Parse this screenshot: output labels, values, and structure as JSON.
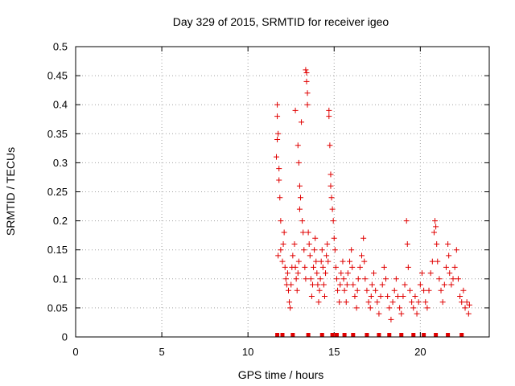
{
  "chart_data": {
    "type": "scatter",
    "title": "Day 329 of 2015, SRMTID for receiver igeo",
    "xlabel": "GPS time / hours",
    "ylabel": "SRMTID / TECUs",
    "xlim": [
      0,
      24
    ],
    "ylim": [
      0,
      0.5
    ],
    "xticks": [
      0,
      5,
      10,
      15,
      20
    ],
    "xtick_labels": [
      "0",
      "5",
      "10",
      "15",
      "20"
    ],
    "yticks": [
      0,
      0.05,
      0.1,
      0.15,
      0.2,
      0.25,
      0.3,
      0.35,
      0.4,
      0.45,
      0.5
    ],
    "ytick_labels": [
      "0",
      "0.05",
      "0.1",
      "0.15",
      "0.2",
      "0.25",
      "0.3",
      "0.35",
      "0.4",
      "0.45",
      "0.5"
    ],
    "grid": true,
    "point_color": "#e00000",
    "marker": "plus",
    "series": [
      {
        "name": "SRMTID",
        "points": [
          [
            11.7,
            0.4
          ],
          [
            11.7,
            0.38
          ],
          [
            11.75,
            0.35
          ],
          [
            11.7,
            0.34
          ],
          [
            11.8,
            0.29
          ],
          [
            11.8,
            0.27
          ],
          [
            11.65,
            0.31
          ],
          [
            11.85,
            0.24
          ],
          [
            11.9,
            0.2
          ],
          [
            11.75,
            0.14
          ],
          [
            11.9,
            0.15
          ],
          [
            12.0,
            0.13
          ],
          [
            12.05,
            0.16
          ],
          [
            12.1,
            0.18
          ],
          [
            12.15,
            0.12
          ],
          [
            12.2,
            0.1
          ],
          [
            12.25,
            0.09
          ],
          [
            12.3,
            0.11
          ],
          [
            12.35,
            0.08
          ],
          [
            12.4,
            0.06
          ],
          [
            12.45,
            0.05
          ],
          [
            12.5,
            0.09
          ],
          [
            12.55,
            0.12
          ],
          [
            12.6,
            0.14
          ],
          [
            12.7,
            0.16
          ],
          [
            12.75,
            0.12
          ],
          [
            12.8,
            0.1
          ],
          [
            12.85,
            0.08
          ],
          [
            12.9,
            0.11
          ],
          [
            12.95,
            0.13
          ],
          [
            12.75,
            0.39
          ],
          [
            12.9,
            0.33
          ],
          [
            12.95,
            0.3
          ],
          [
            13.0,
            0.26
          ],
          [
            13.05,
            0.24
          ],
          [
            13.0,
            0.22
          ],
          [
            13.1,
            0.37
          ],
          [
            13.15,
            0.2
          ],
          [
            13.2,
            0.18
          ],
          [
            13.25,
            0.15
          ],
          [
            13.3,
            0.12
          ],
          [
            13.35,
            0.1
          ],
          [
            13.35,
            0.46
          ],
          [
            13.4,
            0.455
          ],
          [
            13.4,
            0.44
          ],
          [
            13.45,
            0.42
          ],
          [
            13.45,
            0.4
          ],
          [
            13.5,
            0.18
          ],
          [
            13.55,
            0.16
          ],
          [
            13.6,
            0.14
          ],
          [
            13.65,
            0.1
          ],
          [
            13.7,
            0.07
          ],
          [
            13.75,
            0.09
          ],
          [
            13.8,
            0.12
          ],
          [
            13.85,
            0.15
          ],
          [
            13.9,
            0.17
          ],
          [
            13.95,
            0.13
          ],
          [
            14.0,
            0.11
          ],
          [
            14.05,
            0.09
          ],
          [
            14.1,
            0.06
          ],
          [
            14.15,
            0.08
          ],
          [
            14.2,
            0.1
          ],
          [
            14.25,
            0.13
          ],
          [
            14.3,
            0.15
          ],
          [
            14.35,
            0.12
          ],
          [
            14.4,
            0.09
          ],
          [
            14.45,
            0.07
          ],
          [
            14.5,
            0.11
          ],
          [
            14.55,
            0.14
          ],
          [
            14.6,
            0.16
          ],
          [
            14.65,
            0.13
          ],
          [
            14.7,
            0.39
          ],
          [
            14.7,
            0.38
          ],
          [
            14.75,
            0.33
          ],
          [
            14.8,
            0.28
          ],
          [
            14.8,
            0.26
          ],
          [
            14.85,
            0.24
          ],
          [
            14.9,
            0.22
          ],
          [
            14.95,
            0.2
          ],
          [
            15.0,
            0.17
          ],
          [
            15.05,
            0.15
          ],
          [
            15.1,
            0.12
          ],
          [
            15.15,
            0.1
          ],
          [
            15.2,
            0.08
          ],
          [
            15.3,
            0.06
          ],
          [
            15.35,
            0.09
          ],
          [
            15.4,
            0.11
          ],
          [
            15.5,
            0.13
          ],
          [
            15.55,
            0.1
          ],
          [
            15.6,
            0.08
          ],
          [
            15.7,
            0.06
          ],
          [
            15.75,
            0.09
          ],
          [
            15.8,
            0.11
          ],
          [
            15.9,
            0.13
          ],
          [
            16.0,
            0.15
          ],
          [
            16.05,
            0.12
          ],
          [
            16.1,
            0.09
          ],
          [
            16.2,
            0.07
          ],
          [
            16.3,
            0.05
          ],
          [
            16.35,
            0.08
          ],
          [
            16.4,
            0.1
          ],
          [
            16.5,
            0.12
          ],
          [
            16.6,
            0.14
          ],
          [
            16.7,
            0.17
          ],
          [
            16.75,
            0.13
          ],
          [
            16.8,
            0.1
          ],
          [
            16.9,
            0.08
          ],
          [
            17.0,
            0.06
          ],
          [
            17.1,
            0.05
          ],
          [
            17.15,
            0.07
          ],
          [
            17.2,
            0.09
          ],
          [
            17.3,
            0.11
          ],
          [
            17.4,
            0.08
          ],
          [
            17.5,
            0.06
          ],
          [
            17.6,
            0.04
          ],
          [
            17.7,
            0.07
          ],
          [
            17.8,
            0.09
          ],
          [
            17.9,
            0.12
          ],
          [
            18.0,
            0.1
          ],
          [
            18.1,
            0.07
          ],
          [
            18.2,
            0.05
          ],
          [
            18.3,
            0.03
          ],
          [
            18.4,
            0.06
          ],
          [
            18.5,
            0.08
          ],
          [
            18.6,
            0.1
          ],
          [
            18.7,
            0.07
          ],
          [
            18.8,
            0.05
          ],
          [
            18.9,
            0.04
          ],
          [
            19.0,
            0.07
          ],
          [
            19.1,
            0.09
          ],
          [
            19.2,
            0.2
          ],
          [
            19.25,
            0.16
          ],
          [
            19.3,
            0.12
          ],
          [
            19.4,
            0.08
          ],
          [
            19.5,
            0.06
          ],
          [
            19.6,
            0.05
          ],
          [
            19.7,
            0.07
          ],
          [
            19.8,
            0.04
          ],
          [
            19.9,
            0.06
          ],
          [
            20.0,
            0.09
          ],
          [
            20.1,
            0.11
          ],
          [
            20.2,
            0.08
          ],
          [
            20.3,
            0.06
          ],
          [
            20.4,
            0.05
          ],
          [
            20.5,
            0.08
          ],
          [
            20.6,
            0.11
          ],
          [
            20.7,
            0.13
          ],
          [
            20.8,
            0.18
          ],
          [
            20.85,
            0.2
          ],
          [
            20.9,
            0.19
          ],
          [
            20.95,
            0.16
          ],
          [
            21.0,
            0.13
          ],
          [
            21.1,
            0.1
          ],
          [
            21.2,
            0.08
          ],
          [
            21.3,
            0.06
          ],
          [
            21.4,
            0.09
          ],
          [
            21.5,
            0.12
          ],
          [
            21.6,
            0.16
          ],
          [
            21.65,
            0.14
          ],
          [
            21.7,
            0.11
          ],
          [
            21.8,
            0.09
          ],
          [
            21.9,
            0.1
          ],
          [
            22.0,
            0.12
          ],
          [
            22.1,
            0.15
          ],
          [
            22.2,
            0.1
          ],
          [
            22.3,
            0.07
          ],
          [
            22.4,
            0.06
          ],
          [
            22.5,
            0.08
          ],
          [
            22.6,
            0.05
          ],
          [
            22.7,
            0.06
          ],
          [
            22.8,
            0.04
          ],
          [
            22.85,
            0.055
          ]
        ]
      }
    ],
    "zero_markers_x": [
      11.7,
      12.0,
      12.6,
      13.5,
      14.3,
      14.9,
      15.15,
      15.6,
      16.1,
      16.9,
      17.6,
      18.2,
      18.9,
      19.6,
      20.2,
      20.9,
      21.6,
      22.4
    ]
  }
}
